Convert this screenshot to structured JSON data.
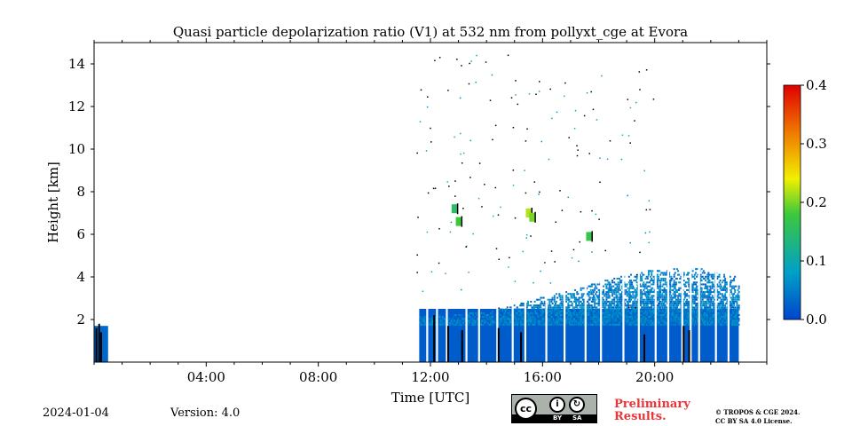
{
  "chart_data": {
    "type": "heatmap",
    "title": "Quasi particle depolarization ratio (V1) at 532 nm from pollyxt_cge at Evora",
    "xlabel": "Time [UTC]",
    "ylabel": "Height [km]",
    "x_range_hours": [
      0,
      24
    ],
    "y_range_km": [
      0,
      15
    ],
    "x_ticks": [
      {
        "hour": 4,
        "label": "04:00"
      },
      {
        "hour": 8,
        "label": "08:00"
      },
      {
        "hour": 12,
        "label": "12:00"
      },
      {
        "hour": 16,
        "label": "16:00"
      },
      {
        "hour": 20,
        "label": "20:00"
      }
    ],
    "y_ticks": [
      {
        "km": 2,
        "label": "2"
      },
      {
        "km": 4,
        "label": "4"
      },
      {
        "km": 6,
        "label": "6"
      },
      {
        "km": 8,
        "label": "8"
      },
      {
        "km": 10,
        "label": "10"
      },
      {
        "km": 12,
        "label": "12"
      },
      {
        "km": 14,
        "label": "14"
      }
    ],
    "colorbar": {
      "range": [
        0.0,
        0.4
      ],
      "ticks": [
        "0.0",
        "0.1",
        "0.2",
        "0.3",
        "0.4"
      ],
      "colormap": [
        "#0044cc",
        "#00a0c8",
        "#3cc83c",
        "#f0f000",
        "#f07800",
        "#e00000"
      ]
    },
    "observations": {
      "segments": [
        {
          "start_h": 0.0,
          "end_h": 0.5,
          "top_km": 1.7,
          "value": 0.03
        },
        {
          "start_h": 11.6,
          "end_h": 23.0,
          "top_km": 2.5,
          "value": 0.02
        }
      ],
      "boundary_layer_growth": [
        {
          "hour": 11.6,
          "top_km": 2.2
        },
        {
          "hour": 14.0,
          "top_km": 2.4
        },
        {
          "hour": 16.0,
          "top_km": 3.1
        },
        {
          "hour": 18.0,
          "top_km": 3.8
        },
        {
          "hour": 19.5,
          "top_km": 4.3
        },
        {
          "hour": 21.5,
          "top_km": 4.5
        },
        {
          "hour": 23.0,
          "top_km": 4.0
        }
      ],
      "gaps_h": [
        11.85,
        12.2,
        12.55,
        13.25,
        13.7,
        14.35,
        14.9,
        15.35,
        16.1,
        16.75,
        17.5,
        18.05,
        18.85,
        19.4,
        20.0,
        20.45,
        20.95,
        21.25,
        21.55,
        22.15,
        22.6
      ],
      "cloud_features": [
        {
          "hour": 12.85,
          "km": 7.2,
          "value": 0.15
        },
        {
          "hour": 13.0,
          "km": 6.6,
          "value": 0.18
        },
        {
          "hour": 15.5,
          "km": 7.0,
          "value": 0.22
        },
        {
          "hour": 15.62,
          "km": 6.8,
          "value": 0.2
        },
        {
          "hour": 17.65,
          "km": 5.9,
          "value": 0.17
        }
      ]
    }
  },
  "footer": {
    "date": "2024-01-04",
    "version": "Version: 4.0",
    "license_badge": {
      "cc": "cc",
      "by": "BY",
      "sa": "SA",
      "by_icon": "i",
      "sa_icon": "↻"
    },
    "preliminary": [
      "Preliminary",
      "Results."
    ],
    "copyright": [
      "© TROPOS & CGE 2024.",
      "CC BY SA 4.0 License."
    ]
  }
}
